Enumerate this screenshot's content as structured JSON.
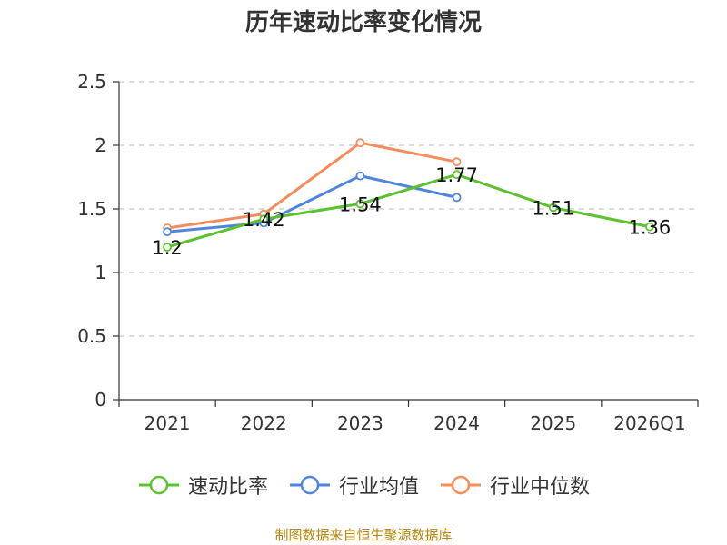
{
  "chart_data": {
    "type": "line",
    "title": "历年速动比率变化情况",
    "categories": [
      "2021",
      "2022",
      "2023",
      "2024",
      "2025",
      "2026Q1"
    ],
    "ylim": [
      0,
      2.5
    ],
    "yticks": [
      0,
      0.5,
      1,
      1.5,
      2,
      2.5
    ],
    "ytick_labels": [
      "0",
      "0.5",
      "1",
      "1.5",
      "2",
      "2.5"
    ],
    "grid": true,
    "legend_position": "bottom",
    "series": [
      {
        "name": "速动比率",
        "color": "#5cc12f",
        "values": [
          1.2,
          1.42,
          1.54,
          1.77,
          1.51,
          1.36
        ],
        "data_labels": [
          "1.2",
          "1.42",
          "1.54",
          "1.77",
          "1.51",
          "1.36"
        ]
      },
      {
        "name": "行业均值",
        "color": "#4f86dc",
        "values": [
          1.32,
          1.39,
          1.76,
          1.59,
          null,
          null
        ]
      },
      {
        "name": "行业中位数",
        "color": "#f48c5c",
        "values": [
          1.35,
          1.46,
          2.02,
          1.87,
          null,
          null
        ]
      }
    ]
  },
  "source_note": "制图数据来自恒生聚源数据库"
}
